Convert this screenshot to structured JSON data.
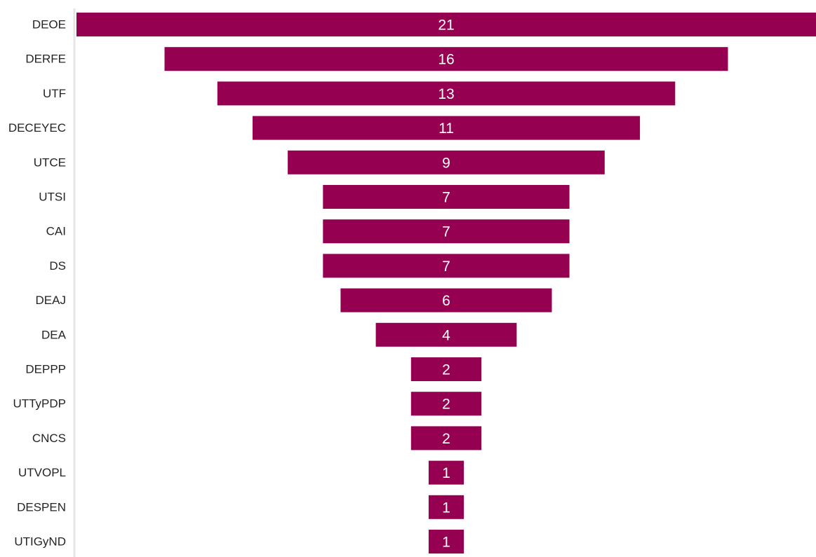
{
  "chart_data": {
    "type": "bar",
    "subtype": "funnel",
    "orientation": "horizontal",
    "categories": [
      "DEOE",
      "DERFE",
      "UTF",
      "DECEYEC",
      "UTCE",
      "UTSI",
      "CAI",
      "DS",
      "DEAJ",
      "DEA",
      "DEPPP",
      "UTTyPDP",
      "CNCS",
      "UTVOPL",
      "DESPEN",
      "UTIGyND"
    ],
    "values": [
      21,
      16,
      13,
      11,
      9,
      7,
      7,
      7,
      6,
      4,
      2,
      2,
      2,
      1,
      1,
      1
    ],
    "title": "",
    "xlabel": "",
    "ylabel": "",
    "data_labels": true,
    "legend": "none",
    "grid": false
  },
  "colors": {
    "bar": "#950051",
    "axis_line": "#e6e6e6",
    "category_text": "#252423",
    "value_text": "#ffffff"
  }
}
